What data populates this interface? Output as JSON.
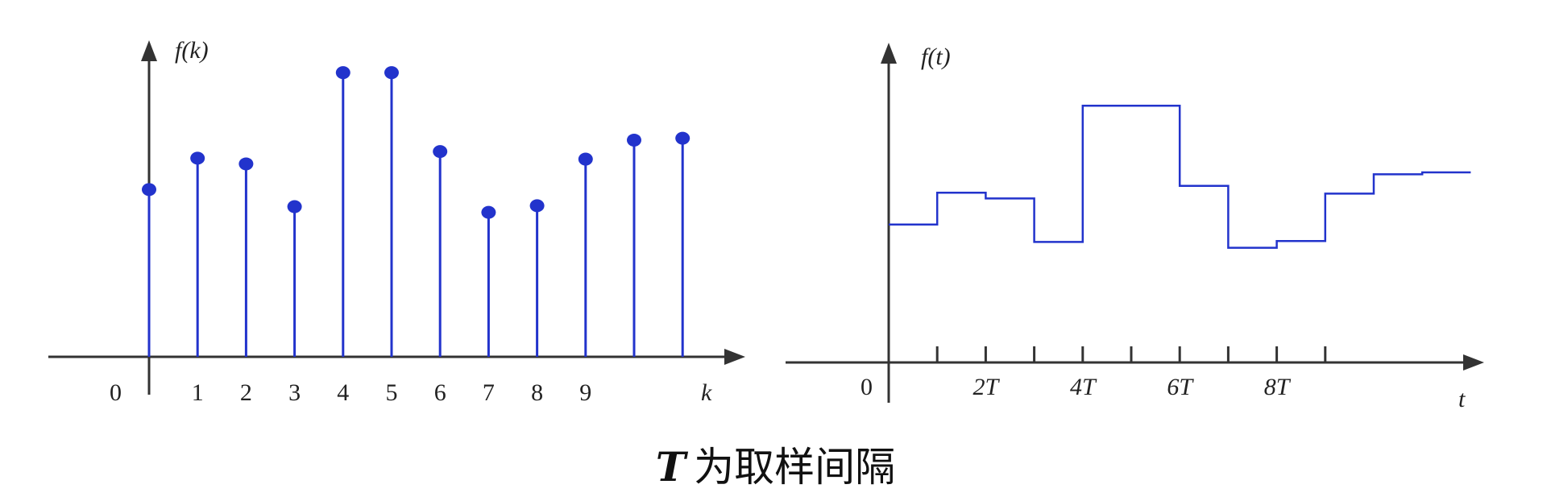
{
  "discrete_plot": {
    "y_label": "f(k)",
    "x_label": "k",
    "origin_label": "0",
    "tick_labels": [
      "1",
      "2",
      "3",
      "4",
      "5",
      "6",
      "7",
      "8",
      "9"
    ],
    "stem_color": "#2233cc"
  },
  "continuous_plot": {
    "y_label": "f(t)",
    "x_label": "t",
    "origin_label": "0",
    "tick_labels": [
      "2T",
      "4T",
      "6T",
      "8T"
    ],
    "line_color": "#2233cc"
  },
  "caption": {
    "variable": "T",
    "text": "为取样间隔"
  },
  "chart_data": [
    {
      "type": "stem",
      "x": [
        0,
        1,
        2,
        3,
        4,
        5,
        6,
        7,
        8,
        9,
        10,
        11
      ],
      "values": [
        1.76,
        2.09,
        2.03,
        1.58,
        2.99,
        2.99,
        2.16,
        1.52,
        1.59,
        2.08,
        2.28,
        2.3
      ],
      "xlabel": "k",
      "ylabel": "f(k)"
    },
    {
      "type": "line",
      "step": true,
      "x_unit": "T",
      "x": [
        0,
        1,
        2,
        3,
        4,
        5,
        6,
        7,
        8,
        9,
        10,
        11
      ],
      "values": [
        1.76,
        2.09,
        2.03,
        1.58,
        2.99,
        2.99,
        2.16,
        1.52,
        1.59,
        2.08,
        2.28,
        2.3
      ],
      "xlabel": "t",
      "ylabel": "f(t)"
    }
  ]
}
